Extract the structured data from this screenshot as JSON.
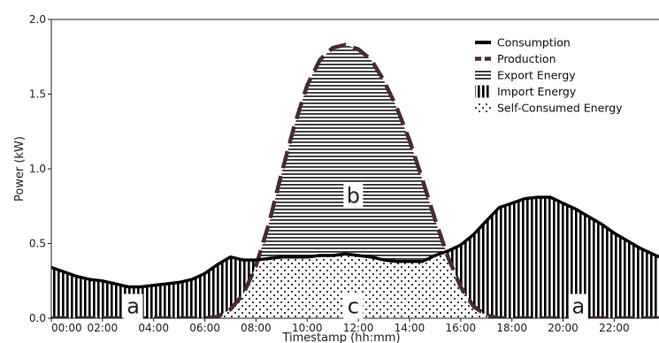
{
  "chart_data": {
    "type": "area",
    "xlabel": "Timestamp (hh:mm)",
    "ylabel": "Power (kW)",
    "ylim": [
      0.0,
      2.0
    ],
    "xlim": [
      0,
      23.75
    ],
    "x_ticks": [
      0,
      2,
      4,
      6,
      8,
      10,
      12,
      14,
      16,
      18,
      20,
      22
    ],
    "x_tick_labels": [
      "00:00",
      "02:00",
      "04:00",
      "06:00",
      "08:00",
      "10:00",
      "12:00",
      "14:00",
      "16:00",
      "18:00",
      "20:00",
      "22:00"
    ],
    "y_ticks": [
      0.0,
      0.5,
      1.0,
      1.5,
      2.0
    ],
    "y_tick_labels": [
      "0.0",
      "0.5",
      "1.0",
      "1.5",
      "2.0"
    ],
    "legend_position": "top-right",
    "legend": [
      {
        "key": "consumption",
        "label": "Consumption",
        "style": "line-solid"
      },
      {
        "key": "production",
        "label": "Production",
        "style": "line-dashed"
      },
      {
        "key": "export",
        "label": "Export Energy",
        "style": "horizontal-hatch"
      },
      {
        "key": "import",
        "label": "Import Energy",
        "style": "vertical-hatch"
      },
      {
        "key": "self",
        "label": "Self-Consumed Energy",
        "style": "dots"
      }
    ],
    "region_labels": [
      {
        "text": "a",
        "x": 3.2,
        "y": 0.08
      },
      {
        "text": "b",
        "x": 11.8,
        "y": 0.82
      },
      {
        "text": "c",
        "x": 11.8,
        "y": 0.08
      },
      {
        "text": "a",
        "x": 20.6,
        "y": 0.08
      }
    ],
    "series": [
      {
        "name": "Consumption",
        "x": [
          0,
          0.5,
          1,
          1.5,
          2,
          2.5,
          3,
          3.5,
          4,
          4.5,
          5,
          5.5,
          6,
          6.5,
          7,
          7.5,
          8,
          8.5,
          9,
          9.5,
          10,
          10.5,
          11,
          11.5,
          12,
          12.5,
          13,
          13.5,
          14,
          14.5,
          15,
          15.5,
          16,
          16.5,
          17,
          17.5,
          18,
          18.5,
          19,
          19.5,
          20,
          20.5,
          21,
          21.5,
          22,
          22.5,
          23,
          23.5,
          23.75
        ],
        "values": [
          0.34,
          0.31,
          0.28,
          0.26,
          0.25,
          0.23,
          0.21,
          0.21,
          0.22,
          0.23,
          0.24,
          0.26,
          0.3,
          0.36,
          0.41,
          0.39,
          0.39,
          0.4,
          0.41,
          0.41,
          0.41,
          0.42,
          0.42,
          0.43,
          0.42,
          0.41,
          0.39,
          0.38,
          0.38,
          0.38,
          0.42,
          0.45,
          0.49,
          0.56,
          0.65,
          0.74,
          0.77,
          0.8,
          0.81,
          0.81,
          0.77,
          0.73,
          0.68,
          0.63,
          0.57,
          0.52,
          0.47,
          0.43,
          0.41
        ]
      },
      {
        "name": "Production",
        "x": [
          0,
          6,
          6.5,
          7,
          7.5,
          8,
          8.5,
          9,
          9.5,
          10,
          10.5,
          11,
          11.5,
          12,
          12.5,
          13,
          13.5,
          14,
          14.5,
          15,
          15.5,
          16,
          16.5,
          17,
          17.5,
          18,
          23.75
        ],
        "values": [
          0,
          0,
          0.01,
          0.06,
          0.16,
          0.35,
          0.63,
          0.97,
          1.29,
          1.56,
          1.73,
          1.81,
          1.83,
          1.8,
          1.73,
          1.59,
          1.41,
          1.19,
          0.93,
          0.66,
          0.41,
          0.21,
          0.08,
          0.02,
          0.0,
          0.0,
          0.0
        ]
      }
    ]
  }
}
